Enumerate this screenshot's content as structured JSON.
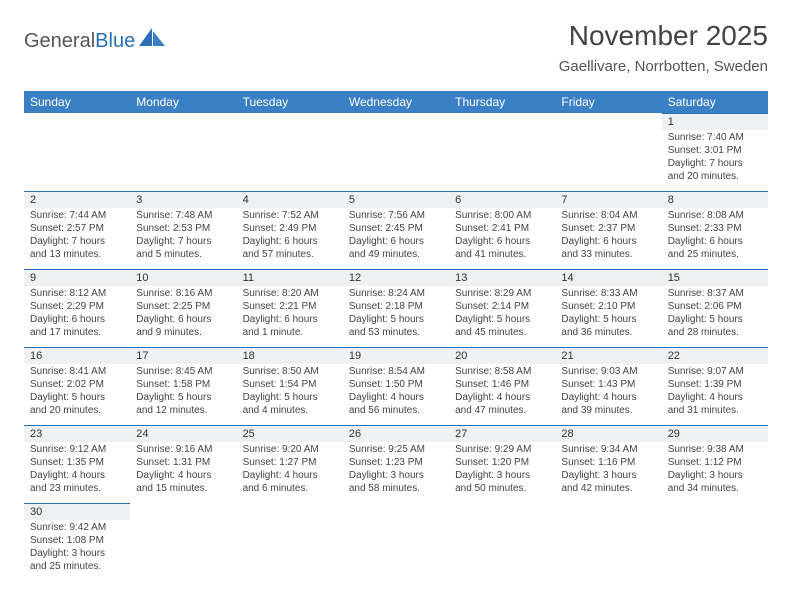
{
  "logo": {
    "part1": "General",
    "part2": "Blue"
  },
  "title": "November 2025",
  "location": "Gaellivare, Norrbotten, Sweden",
  "colors": {
    "header_bg": "#3b7fc4",
    "header_text": "#ffffff",
    "divider": "#2a6fb5",
    "daynum_bg": "#eef0f1",
    "text": "#444444"
  },
  "dayHeaders": [
    "Sunday",
    "Monday",
    "Tuesday",
    "Wednesday",
    "Thursday",
    "Friday",
    "Saturday"
  ],
  "weeks": [
    [
      {
        "empty": true
      },
      {
        "empty": true
      },
      {
        "empty": true
      },
      {
        "empty": true
      },
      {
        "empty": true
      },
      {
        "empty": true
      },
      {
        "day": "1",
        "sunrise": "Sunrise: 7:40 AM",
        "sunset": "Sunset: 3:01 PM",
        "daylight": "Daylight: 7 hours and 20 minutes."
      }
    ],
    [
      {
        "day": "2",
        "sunrise": "Sunrise: 7:44 AM",
        "sunset": "Sunset: 2:57 PM",
        "daylight": "Daylight: 7 hours and 13 minutes."
      },
      {
        "day": "3",
        "sunrise": "Sunrise: 7:48 AM",
        "sunset": "Sunset: 2:53 PM",
        "daylight": "Daylight: 7 hours and 5 minutes."
      },
      {
        "day": "4",
        "sunrise": "Sunrise: 7:52 AM",
        "sunset": "Sunset: 2:49 PM",
        "daylight": "Daylight: 6 hours and 57 minutes."
      },
      {
        "day": "5",
        "sunrise": "Sunrise: 7:56 AM",
        "sunset": "Sunset: 2:45 PM",
        "daylight": "Daylight: 6 hours and 49 minutes."
      },
      {
        "day": "6",
        "sunrise": "Sunrise: 8:00 AM",
        "sunset": "Sunset: 2:41 PM",
        "daylight": "Daylight: 6 hours and 41 minutes."
      },
      {
        "day": "7",
        "sunrise": "Sunrise: 8:04 AM",
        "sunset": "Sunset: 2:37 PM",
        "daylight": "Daylight: 6 hours and 33 minutes."
      },
      {
        "day": "8",
        "sunrise": "Sunrise: 8:08 AM",
        "sunset": "Sunset: 2:33 PM",
        "daylight": "Daylight: 6 hours and 25 minutes."
      }
    ],
    [
      {
        "day": "9",
        "sunrise": "Sunrise: 8:12 AM",
        "sunset": "Sunset: 2:29 PM",
        "daylight": "Daylight: 6 hours and 17 minutes."
      },
      {
        "day": "10",
        "sunrise": "Sunrise: 8:16 AM",
        "sunset": "Sunset: 2:25 PM",
        "daylight": "Daylight: 6 hours and 9 minutes."
      },
      {
        "day": "11",
        "sunrise": "Sunrise: 8:20 AM",
        "sunset": "Sunset: 2:21 PM",
        "daylight": "Daylight: 6 hours and 1 minute."
      },
      {
        "day": "12",
        "sunrise": "Sunrise: 8:24 AM",
        "sunset": "Sunset: 2:18 PM",
        "daylight": "Daylight: 5 hours and 53 minutes."
      },
      {
        "day": "13",
        "sunrise": "Sunrise: 8:29 AM",
        "sunset": "Sunset: 2:14 PM",
        "daylight": "Daylight: 5 hours and 45 minutes."
      },
      {
        "day": "14",
        "sunrise": "Sunrise: 8:33 AM",
        "sunset": "Sunset: 2:10 PM",
        "daylight": "Daylight: 5 hours and 36 minutes."
      },
      {
        "day": "15",
        "sunrise": "Sunrise: 8:37 AM",
        "sunset": "Sunset: 2:06 PM",
        "daylight": "Daylight: 5 hours and 28 minutes."
      }
    ],
    [
      {
        "day": "16",
        "sunrise": "Sunrise: 8:41 AM",
        "sunset": "Sunset: 2:02 PM",
        "daylight": "Daylight: 5 hours and 20 minutes."
      },
      {
        "day": "17",
        "sunrise": "Sunrise: 8:45 AM",
        "sunset": "Sunset: 1:58 PM",
        "daylight": "Daylight: 5 hours and 12 minutes."
      },
      {
        "day": "18",
        "sunrise": "Sunrise: 8:50 AM",
        "sunset": "Sunset: 1:54 PM",
        "daylight": "Daylight: 5 hours and 4 minutes."
      },
      {
        "day": "19",
        "sunrise": "Sunrise: 8:54 AM",
        "sunset": "Sunset: 1:50 PM",
        "daylight": "Daylight: 4 hours and 56 minutes."
      },
      {
        "day": "20",
        "sunrise": "Sunrise: 8:58 AM",
        "sunset": "Sunset: 1:46 PM",
        "daylight": "Daylight: 4 hours and 47 minutes."
      },
      {
        "day": "21",
        "sunrise": "Sunrise: 9:03 AM",
        "sunset": "Sunset: 1:43 PM",
        "daylight": "Daylight: 4 hours and 39 minutes."
      },
      {
        "day": "22",
        "sunrise": "Sunrise: 9:07 AM",
        "sunset": "Sunset: 1:39 PM",
        "daylight": "Daylight: 4 hours and 31 minutes."
      }
    ],
    [
      {
        "day": "23",
        "sunrise": "Sunrise: 9:12 AM",
        "sunset": "Sunset: 1:35 PM",
        "daylight": "Daylight: 4 hours and 23 minutes."
      },
      {
        "day": "24",
        "sunrise": "Sunrise: 9:16 AM",
        "sunset": "Sunset: 1:31 PM",
        "daylight": "Daylight: 4 hours and 15 minutes."
      },
      {
        "day": "25",
        "sunrise": "Sunrise: 9:20 AM",
        "sunset": "Sunset: 1:27 PM",
        "daylight": "Daylight: 4 hours and 6 minutes."
      },
      {
        "day": "26",
        "sunrise": "Sunrise: 9:25 AM",
        "sunset": "Sunset: 1:23 PM",
        "daylight": "Daylight: 3 hours and 58 minutes."
      },
      {
        "day": "27",
        "sunrise": "Sunrise: 9:29 AM",
        "sunset": "Sunset: 1:20 PM",
        "daylight": "Daylight: 3 hours and 50 minutes."
      },
      {
        "day": "28",
        "sunrise": "Sunrise: 9:34 AM",
        "sunset": "Sunset: 1:16 PM",
        "daylight": "Daylight: 3 hours and 42 minutes."
      },
      {
        "day": "29",
        "sunrise": "Sunrise: 9:38 AM",
        "sunset": "Sunset: 1:12 PM",
        "daylight": "Daylight: 3 hours and 34 minutes."
      }
    ],
    [
      {
        "day": "30",
        "sunrise": "Sunrise: 9:42 AM",
        "sunset": "Sunset: 1:08 PM",
        "daylight": "Daylight: 3 hours and 25 minutes."
      },
      {
        "empty": true
      },
      {
        "empty": true
      },
      {
        "empty": true
      },
      {
        "empty": true
      },
      {
        "empty": true
      },
      {
        "empty": true
      }
    ]
  ]
}
